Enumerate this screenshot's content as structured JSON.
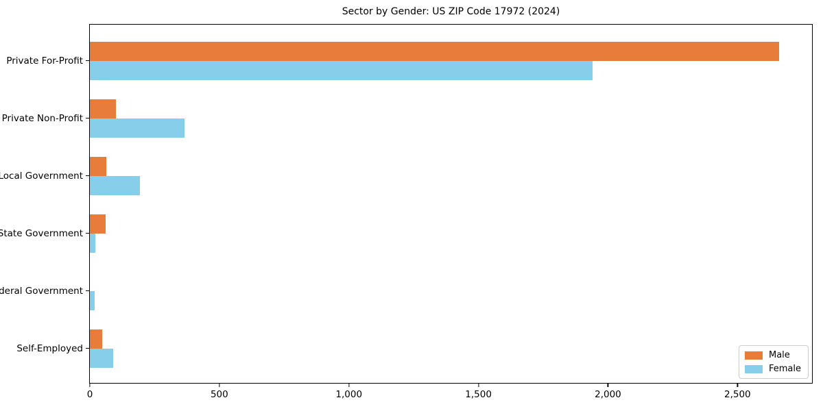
{
  "chart_data": {
    "type": "bar",
    "orientation": "horizontal",
    "title": "Sector by Gender: US ZIP Code 17972 (2024)",
    "categories": [
      "Private For-Profit",
      "Private Non-Profit",
      "Local Government",
      "State Government",
      "Federal Government",
      "Self-Employed"
    ],
    "series": [
      {
        "name": "Male",
        "color": "#e87d3b",
        "values": [
          2660,
          100,
          63,
          60,
          0,
          47
        ]
      },
      {
        "name": "Female",
        "color": "#87ceeb",
        "values": [
          1940,
          365,
          193,
          21,
          19,
          90
        ]
      }
    ],
    "xlim": [
      0,
      2793
    ],
    "xticks": [
      0,
      500,
      1000,
      1500,
      2000,
      2500
    ],
    "xtick_labels": [
      "0",
      "500",
      "1,000",
      "1,500",
      "2,000",
      "2,500"
    ],
    "xlabel": "",
    "ylabel": "",
    "grid": false,
    "legend_position": "lower right",
    "legend_labels": [
      "Male",
      "Female"
    ]
  },
  "colors": {
    "male": "#e87d3b",
    "female": "#87ceeb",
    "spine": "#000000",
    "legend_border": "#cccccc",
    "background": "#ffffff"
  }
}
